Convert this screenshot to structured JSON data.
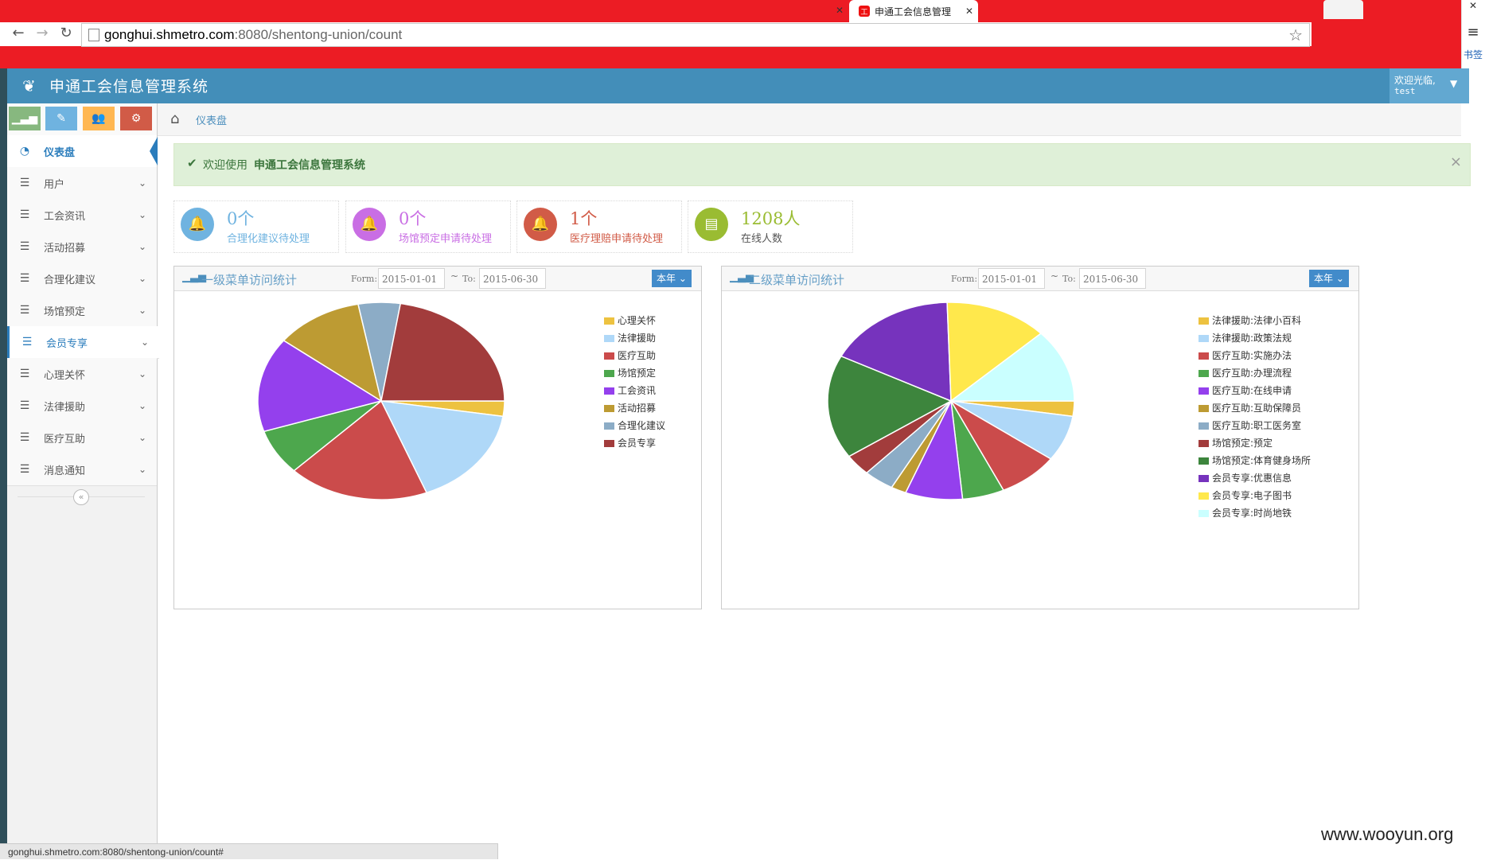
{
  "browser": {
    "tab_title": "申通工会信息管理",
    "tab_icon": "工",
    "tab_close": "✕",
    "prev_tab_close": "✕",
    "url_host": "gonghui.shmetro.com",
    "url_rest": ":8080/shentong-union/count",
    "back_glyph": "←",
    "forward_glyph": "→",
    "reload_glyph": "↻",
    "star_glyph": "☆",
    "menu_glyph": "≡",
    "window_close": "✕",
    "bookmarks_label": "书签",
    "status_url": "gonghui.shmetro.com:8080/shentong-union/count#"
  },
  "header": {
    "logo_glyph": "❦",
    "title": "申通工会信息管理系统",
    "welcome": "欢迎光临,",
    "username": "test",
    "caret": "▼"
  },
  "shortcuts": [
    {
      "icon": "signal-icon",
      "glyph": "▁▃▅",
      "color": "#87b87f"
    },
    {
      "icon": "pencil-icon",
      "glyph": "✎",
      "color": "#6fb3e0"
    },
    {
      "icon": "group-icon",
      "glyph": "👥",
      "color": "#ffb752"
    },
    {
      "icon": "cogs-icon",
      "glyph": "⚙",
      "color": "#d15b47"
    }
  ],
  "sidebar": {
    "items": [
      {
        "label": "仪表盘",
        "icon": "dashboard-icon",
        "glyph": "◔",
        "arrow": ""
      },
      {
        "label": "用户",
        "icon": "list-icon",
        "glyph": "☰",
        "arrow": "⌄"
      },
      {
        "label": "工会资讯",
        "icon": "list-icon",
        "glyph": "☰",
        "arrow": "⌄"
      },
      {
        "label": "活动招募",
        "icon": "list-icon",
        "glyph": "☰",
        "arrow": "⌄"
      },
      {
        "label": "合理化建议",
        "icon": "list-icon",
        "glyph": "☰",
        "arrow": "⌄"
      },
      {
        "label": "场馆预定",
        "icon": "list-icon",
        "glyph": "☰",
        "arrow": "⌄"
      },
      {
        "label": "会员专享",
        "icon": "list-icon",
        "glyph": "☰",
        "arrow": "⌄"
      },
      {
        "label": "心理关怀",
        "icon": "list-icon",
        "glyph": "☰",
        "arrow": "⌄"
      },
      {
        "label": "法律援助",
        "icon": "list-icon",
        "glyph": "☰",
        "arrow": "⌄"
      },
      {
        "label": "医疗互助",
        "icon": "list-icon",
        "glyph": "☰",
        "arrow": "⌄"
      },
      {
        "label": "消息通知",
        "icon": "list-icon",
        "glyph": "☰",
        "arrow": "⌄"
      }
    ],
    "collapse_glyph": "«"
  },
  "breadcrumb": {
    "home_glyph": "⌂",
    "current": "仪表盘"
  },
  "alert": {
    "check": "✔",
    "message": "欢迎使用",
    "system_name": "申通工会信息管理系统",
    "close": "×"
  },
  "infoboxes": [
    {
      "number": "0个",
      "label": "合理化建议待处理",
      "color": "#6fb3e0",
      "icon": "bell-icon",
      "glyph": "🔔"
    },
    {
      "number": "0个",
      "label": "场馆预定申请待处理",
      "color": "#c96ee4",
      "icon": "bell-icon",
      "glyph": "🔔"
    },
    {
      "number": "1个",
      "label": "医疗理赔申请待处理",
      "color": "#d15b47",
      "icon": "bell-icon",
      "glyph": "🔔"
    },
    {
      "number": "1208人",
      "label": "在线人数",
      "color": "#9abc32",
      "icon": "bar-chart-icon",
      "glyph": "▤"
    }
  ],
  "panels": [
    {
      "title": "一级菜单访问统计",
      "from_label": "Form:",
      "from_value": "2015-01-01",
      "to_label": "To:",
      "to_value": "2015-06-30",
      "range_btn": "本年",
      "caret": "⌄",
      "icon_glyph": "▁▃▅",
      "tilde": "~"
    },
    {
      "title": "二级菜单访问统计",
      "from_label": "Form:",
      "from_value": "2015-01-01",
      "to_label": "To:",
      "to_value": "2015-06-30",
      "range_btn": "本年",
      "caret": "⌄",
      "icon_glyph": "▁▃▅",
      "tilde": "~"
    }
  ],
  "chart_data": [
    {
      "type": "pie",
      "title": "一级菜单访问统计",
      "categories": [
        "心理关怀",
        "法律援助",
        "医疗互助",
        "场馆预定",
        "工会资讯",
        "活动招募",
        "合理化建议",
        "会员专享"
      ],
      "values": [
        2.5,
        16.5,
        18.5,
        7.5,
        15.5,
        11.5,
        5.5,
        22.5
      ],
      "colors": [
        "#edc240",
        "#afd8f8",
        "#cb4b4b",
        "#4da74d",
        "#9440ed",
        "#bd9b33",
        "#8cacc6",
        "#a23c3c"
      ]
    },
    {
      "type": "pie",
      "title": "二级菜单访问统计",
      "categories": [
        "法律援助:法律小百科",
        "法律援助:政策法规",
        "医疗互助:实施办法",
        "医疗互助:办理流程",
        "医疗互助:在线申请",
        "医疗互助:互助保障员",
        "医疗互助:职工医务室",
        "场馆预定:预定",
        "场馆预定:体育健身场所",
        "会员专享:优惠信息",
        "会员专享:电子图书",
        "会员专享:时尚地铁"
      ],
      "values": [
        2.5,
        7.5,
        8,
        5.5,
        7.5,
        2,
        4,
        3.5,
        17,
        17,
        13.5,
        12
      ],
      "colors": [
        "#edc240",
        "#afd8f8",
        "#cb4b4b",
        "#4da74d",
        "#9440ed",
        "#bd9b33",
        "#8cacc6",
        "#a23c3c",
        "#3d853d",
        "#7633bd",
        "#ffe84c",
        "#caffff"
      ]
    }
  ],
  "watermark": "www.wooyun.org"
}
